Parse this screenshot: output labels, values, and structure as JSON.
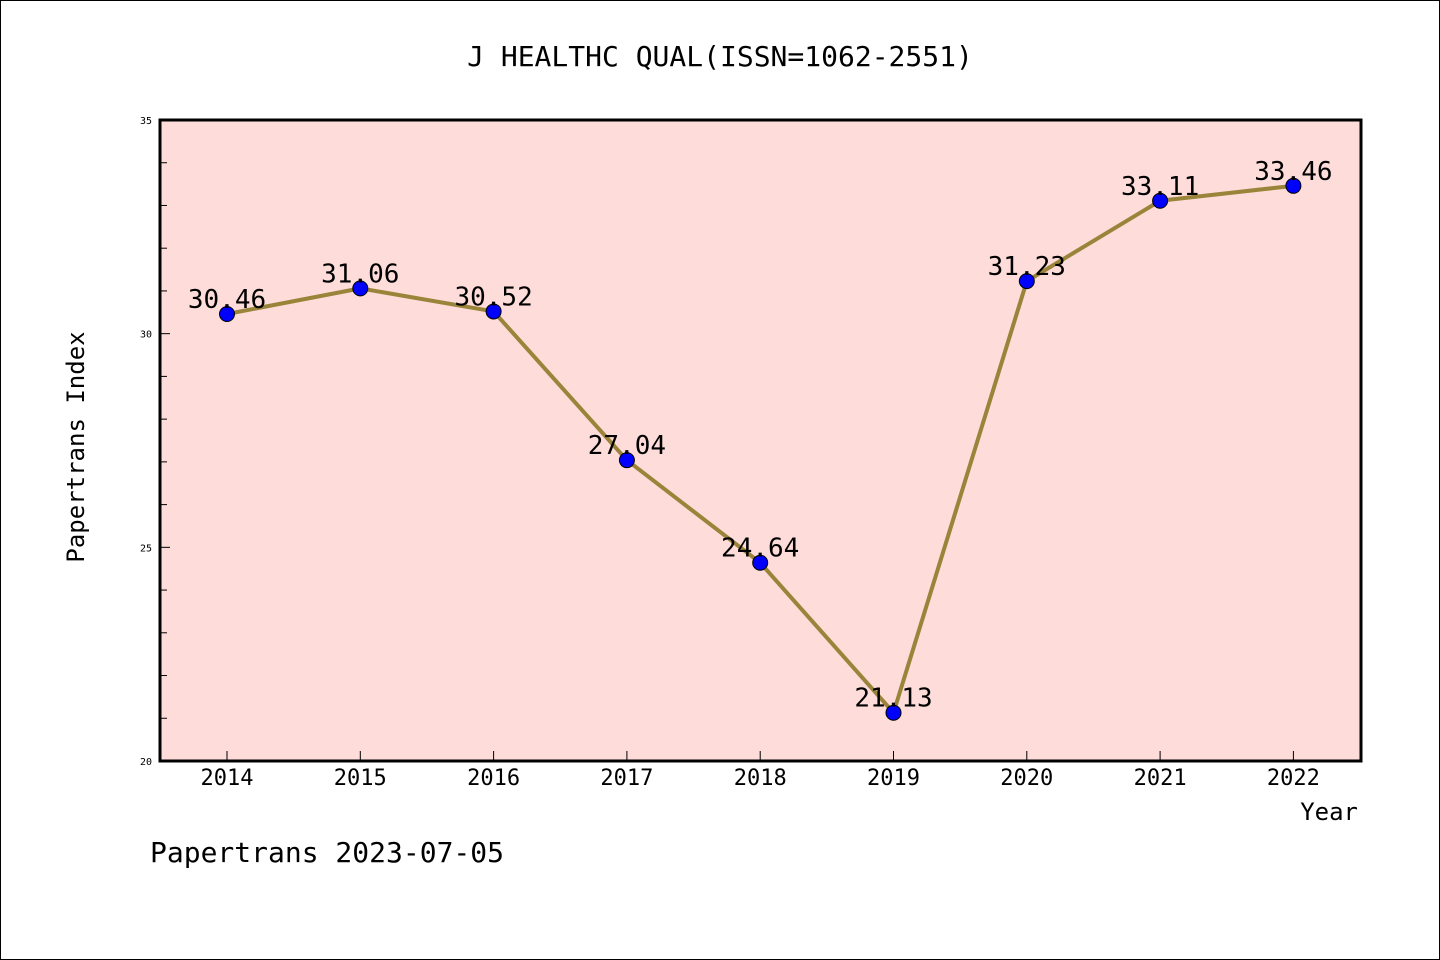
{
  "chart_data": {
    "type": "line",
    "title": "J HEALTHC QUAL(ISSN=1062-2551)",
    "xlabel": "Year",
    "ylabel": "Papertrans Index",
    "categories": [
      "2014",
      "2015",
      "2016",
      "2017",
      "2018",
      "2019",
      "2020",
      "2021",
      "2022"
    ],
    "series": [
      {
        "values": [
          30.46,
          31.06,
          30.52,
          27.04,
          24.64,
          21.13,
          31.23,
          33.11,
          33.46
        ],
        "labels": [
          "30.46",
          "31.06",
          "30.52",
          "27.04",
          "24.64",
          "21.13",
          "31.23",
          "33.11",
          "33.46"
        ]
      }
    ],
    "ylim": [
      20,
      35
    ],
    "yticks": [
      "20",
      "25",
      "30",
      "35"
    ],
    "grid": false,
    "colors": {
      "plot_background": "#fddcda",
      "line": "#9a8439",
      "marker": "#0000ff"
    }
  },
  "footer": {
    "text": "Papertrans 2023-07-05"
  }
}
